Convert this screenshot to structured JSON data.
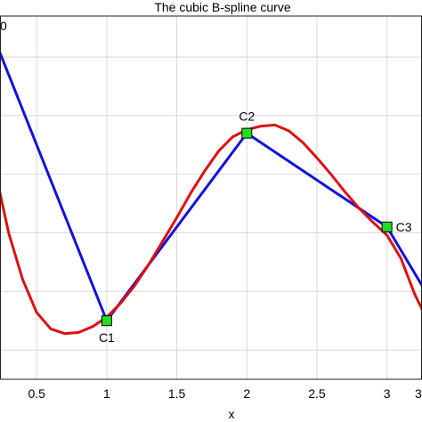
{
  "chart_data": {
    "type": "line",
    "title": "The cubic B-spline curve",
    "xlabel": "x",
    "ylabel": "",
    "xlim": [
      0.2,
      3.25
    ],
    "ylim": [
      0.5,
      3.6
    ],
    "grid": true,
    "x_ticks": [
      0.5,
      1,
      1.5,
      2,
      2.5,
      3
    ],
    "x_tick_labels": [
      "0.5",
      "1",
      "1.5",
      "2",
      "2.5",
      "3"
    ],
    "y_ticks": [
      0.75,
      1.25,
      1.75,
      2.25,
      2.75,
      3.25
    ],
    "series": [
      {
        "style": "control-polygon",
        "color": "#1111dd",
        "x": [
          0.0,
          1.0,
          2.0,
          3.0,
          3.5
        ],
        "y": [
          4.0,
          1.0,
          2.6,
          1.8,
          0.8
        ]
      },
      {
        "style": "spline",
        "color": "#dd1111",
        "x": [
          0.2,
          0.3,
          0.4,
          0.5,
          0.6,
          0.7,
          0.8,
          0.9,
          1.0,
          1.1,
          1.2,
          1.3,
          1.4,
          1.5,
          1.6,
          1.7,
          1.8,
          1.9,
          2.0,
          2.1,
          2.2,
          2.3,
          2.4,
          2.5,
          2.6,
          2.7,
          2.8,
          2.9,
          3.0,
          3.1,
          3.2,
          3.3
        ],
        "y": [
          2.3,
          1.75,
          1.35,
          1.07,
          0.93,
          0.89,
          0.9,
          0.95,
          1.03,
          1.15,
          1.3,
          1.48,
          1.68,
          1.88,
          2.09,
          2.28,
          2.45,
          2.57,
          2.63,
          2.66,
          2.67,
          2.62,
          2.52,
          2.39,
          2.25,
          2.1,
          1.96,
          1.84,
          1.73,
          1.53,
          1.22,
          0.98
        ]
      }
    ],
    "control_points": [
      {
        "label": "C1",
        "x": 1.0,
        "y": 1.0
      },
      {
        "label": "C2",
        "x": 2.0,
        "y": 2.6
      },
      {
        "label": "C3",
        "x": 3.0,
        "y": 1.8
      }
    ],
    "partial_labels": {
      "top_left": "0",
      "bottom_right": "3"
    }
  }
}
